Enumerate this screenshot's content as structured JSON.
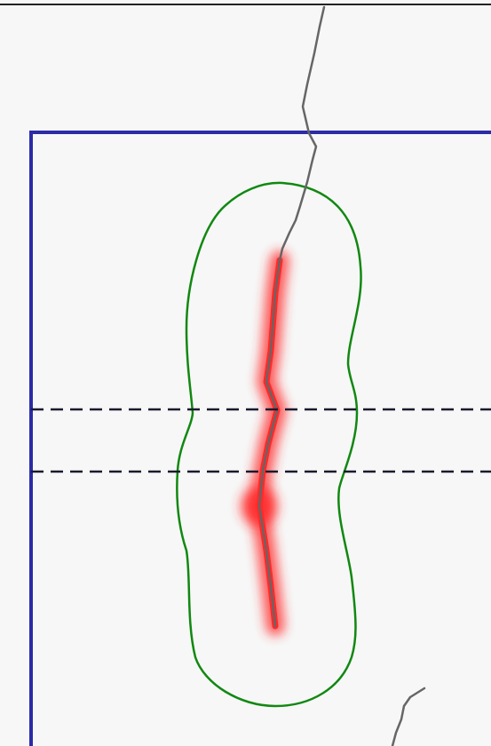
{
  "colors": {
    "background": "#f7f7f7",
    "frame": "#222222",
    "region_boundary": "#2b2ba8",
    "buffer_outline": "#118811",
    "crack_line": "#666666",
    "highlight_glow": "#ff2a2a",
    "band_dash": "#1a1a2e"
  },
  "labels": {}
}
